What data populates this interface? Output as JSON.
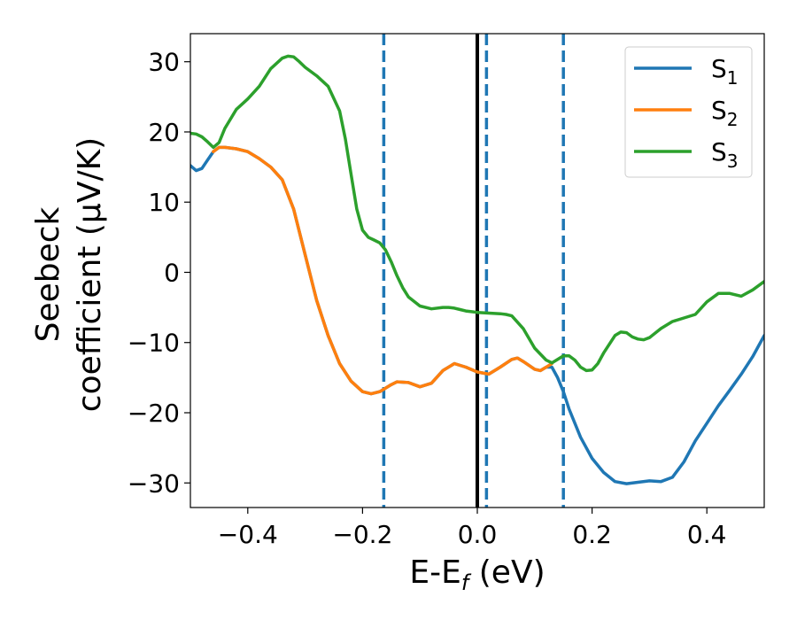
{
  "chart_data": {
    "type": "line",
    "xlabel": "E-E",
    "xlabel_sub": "f",
    "xlabel_unit": " (eV)",
    "ylabel_line1": "Seebeck",
    "ylabel_line2": "coefficient  (μV/K)",
    "xlim": [
      -0.5,
      0.5
    ],
    "ylim": [
      -33.5,
      34
    ],
    "x_ticks": [
      -0.4,
      -0.2,
      0.0,
      0.2,
      0.4
    ],
    "x_tick_labels": [
      "−0.4",
      "−0.2",
      "0.0",
      "0.2",
      "0.4"
    ],
    "y_ticks": [
      -30,
      -20,
      -10,
      0,
      10,
      20,
      30
    ],
    "y_tick_labels": [
      "−30",
      "−20",
      "−10",
      "0",
      "10",
      "20",
      "30"
    ],
    "legend_position": "top-right",
    "grid": false,
    "vertical_lines": [
      {
        "x": -0.163,
        "style": "dashed",
        "color": "#1f77b4"
      },
      {
        "x": 0.0,
        "style": "solid",
        "color": "#000000"
      },
      {
        "x": 0.016,
        "style": "dashed",
        "color": "#1f77b4"
      },
      {
        "x": 0.15,
        "style": "dashed",
        "color": "#1f77b4"
      }
    ],
    "series": [
      {
        "name": "S",
        "subscript": "1",
        "color": "#1f77b4",
        "x": [
          -0.5,
          -0.49,
          -0.48,
          -0.47,
          -0.46,
          -0.45,
          -0.44,
          -0.42,
          -0.4,
          -0.38,
          -0.36,
          -0.34,
          -0.32,
          -0.3,
          -0.28,
          -0.26,
          -0.24,
          -0.22,
          -0.2,
          -0.185,
          -0.17,
          -0.16,
          -0.15,
          -0.14,
          -0.12,
          -0.1,
          -0.08,
          -0.06,
          -0.04,
          -0.02,
          0.0,
          0.02,
          0.04,
          0.06,
          0.07,
          0.08,
          0.1,
          0.11,
          0.12,
          0.13,
          0.14,
          0.15,
          0.16,
          0.18,
          0.2,
          0.22,
          0.24,
          0.26,
          0.28,
          0.3,
          0.32,
          0.34,
          0.36,
          0.38,
          0.4,
          0.42,
          0.44,
          0.46,
          0.48,
          0.5
        ],
        "y": [
          15.2,
          14.5,
          14.8,
          16.0,
          17.2,
          17.8,
          17.8,
          17.6,
          17.2,
          16.2,
          15.0,
          13.2,
          9.0,
          2.5,
          -4.0,
          -9.0,
          -13.0,
          -15.5,
          -17.0,
          -17.3,
          -17.0,
          -16.5,
          -16.0,
          -15.6,
          -15.7,
          -16.3,
          -15.8,
          -14.0,
          -13.0,
          -13.5,
          -14.2,
          -14.5,
          -13.5,
          -12.4,
          -12.2,
          -12.7,
          -13.8,
          -14.0,
          -13.5,
          -13.5,
          -15.0,
          -17.0,
          -19.5,
          -23.5,
          -26.5,
          -28.5,
          -29.8,
          -30.1,
          -29.9,
          -29.7,
          -29.8,
          -29.2,
          -27.0,
          -24.0,
          -21.5,
          -19.0,
          -16.8,
          -14.5,
          -12.0,
          -9.0
        ]
      },
      {
        "name": "S",
        "subscript": "2",
        "color": "#ff7f0e",
        "x": [
          -0.46,
          -0.45,
          -0.44,
          -0.42,
          -0.4,
          -0.38,
          -0.36,
          -0.34,
          -0.32,
          -0.3,
          -0.28,
          -0.26,
          -0.24,
          -0.22,
          -0.2,
          -0.185,
          -0.17,
          -0.16,
          -0.15,
          -0.14,
          -0.12,
          -0.1,
          -0.08,
          -0.06,
          -0.04,
          -0.02,
          0.0,
          0.02,
          0.04,
          0.06,
          0.07,
          0.08,
          0.1,
          0.11,
          0.12,
          0.13
        ],
        "y": [
          17.2,
          17.8,
          17.8,
          17.6,
          17.2,
          16.2,
          15.0,
          13.2,
          9.0,
          2.5,
          -4.0,
          -9.0,
          -13.0,
          -15.5,
          -17.0,
          -17.3,
          -17.0,
          -16.5,
          -16.0,
          -15.6,
          -15.7,
          -16.3,
          -15.8,
          -14.0,
          -13.0,
          -13.5,
          -14.2,
          -14.5,
          -13.5,
          -12.4,
          -12.2,
          -12.7,
          -13.8,
          -14.0,
          -13.5,
          -13.0
        ]
      },
      {
        "name": "S",
        "subscript": "3",
        "color": "#2ca02c",
        "x": [
          -0.5,
          -0.49,
          -0.48,
          -0.47,
          -0.46,
          -0.45,
          -0.44,
          -0.42,
          -0.4,
          -0.38,
          -0.36,
          -0.34,
          -0.33,
          -0.32,
          -0.31,
          -0.3,
          -0.28,
          -0.26,
          -0.24,
          -0.23,
          -0.22,
          -0.21,
          -0.2,
          -0.19,
          -0.18,
          -0.17,
          -0.16,
          -0.15,
          -0.14,
          -0.13,
          -0.12,
          -0.1,
          -0.08,
          -0.06,
          -0.05,
          -0.04,
          -0.03,
          -0.02,
          -0.01,
          0.0,
          0.02,
          0.04,
          0.05,
          0.06,
          0.08,
          0.1,
          0.12,
          0.13,
          0.14,
          0.15,
          0.16,
          0.17,
          0.18,
          0.19,
          0.2,
          0.21,
          0.22,
          0.24,
          0.25,
          0.26,
          0.27,
          0.28,
          0.29,
          0.3,
          0.32,
          0.34,
          0.36,
          0.38,
          0.4,
          0.42,
          0.44,
          0.46,
          0.48,
          0.5
        ],
        "y": [
          19.8,
          19.7,
          19.3,
          18.6,
          17.8,
          18.5,
          20.5,
          23.2,
          24.7,
          26.5,
          29.0,
          30.5,
          30.8,
          30.7,
          30.0,
          29.2,
          28.0,
          26.5,
          23.0,
          19.0,
          14.0,
          9.0,
          6.0,
          5.0,
          4.6,
          4.2,
          3.2,
          1.5,
          -0.5,
          -2.2,
          -3.5,
          -4.8,
          -5.2,
          -5.0,
          -5.0,
          -5.1,
          -5.3,
          -5.5,
          -5.6,
          -5.7,
          -5.8,
          -5.9,
          -6.0,
          -6.2,
          -8.0,
          -10.8,
          -12.5,
          -12.9,
          -12.4,
          -11.9,
          -11.9,
          -12.5,
          -13.5,
          -14.0,
          -13.9,
          -13.0,
          -11.5,
          -9.0,
          -8.5,
          -8.6,
          -9.2,
          -9.5,
          -9.6,
          -9.3,
          -8.0,
          -7.0,
          -6.5,
          -6.0,
          -4.2,
          -3.0,
          -3.0,
          -3.4,
          -2.5,
          -1.3
        ]
      }
    ]
  }
}
